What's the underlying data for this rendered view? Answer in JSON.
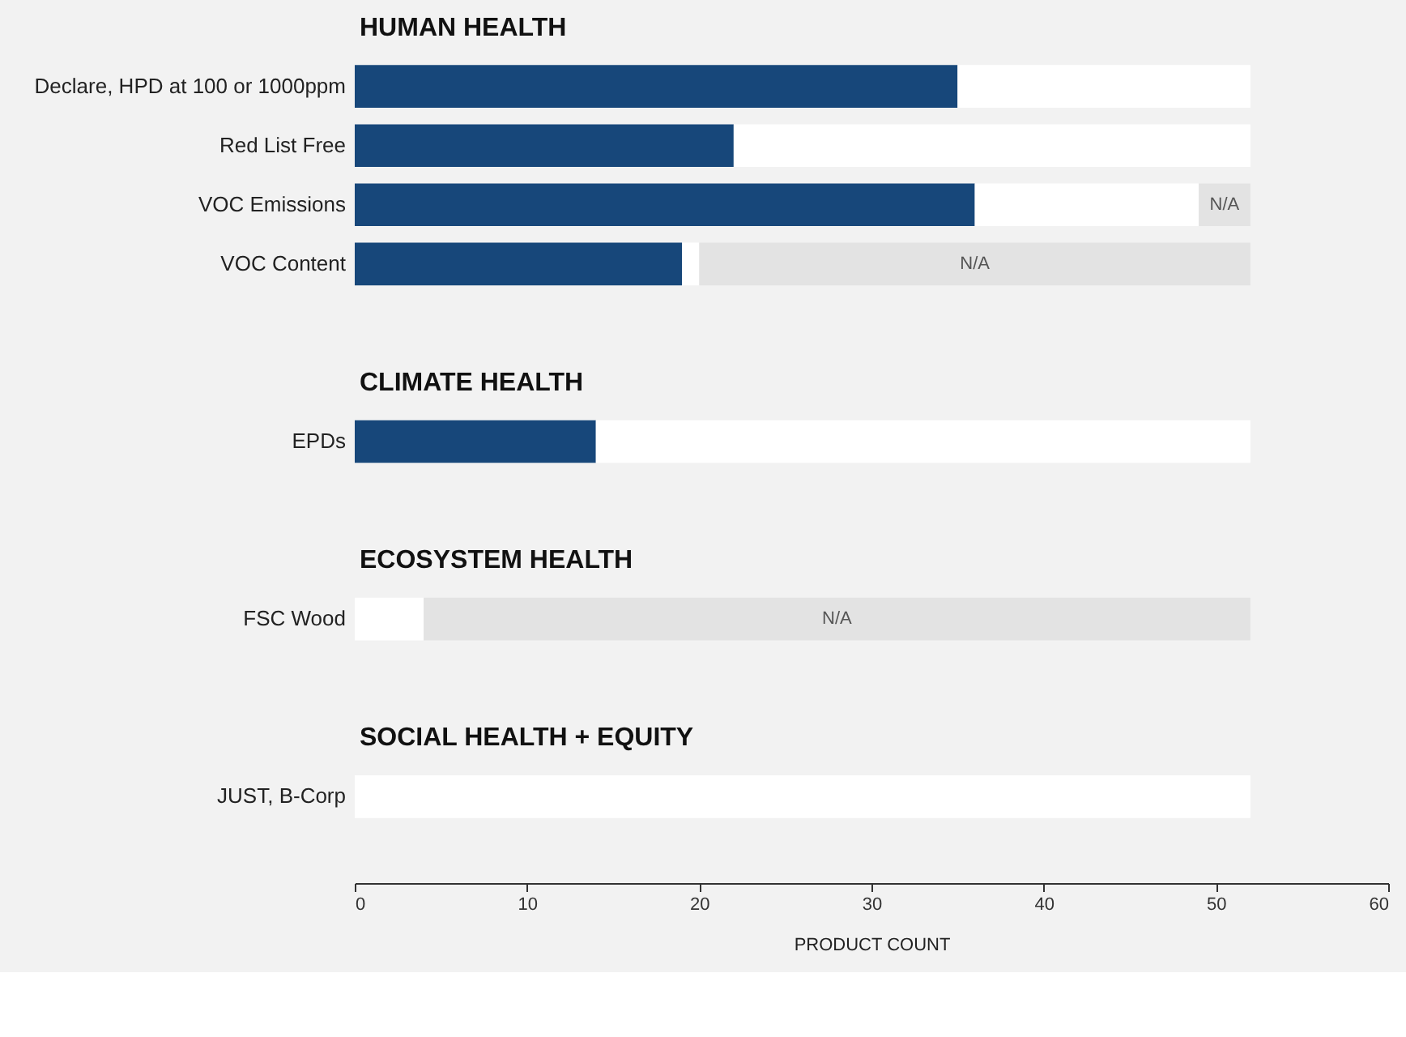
{
  "chart_data": {
    "type": "bar",
    "orientation": "horizontal",
    "stacked": true,
    "xlabel": "PRODUCT COUNT",
    "annotations": [
      "HUMAN HEALTH",
      "CLIMATE HEALTH",
      "ECOSYSTEM HEALTH",
      "SOCIAL HEALTH + EQUITY"
    ],
    "categories": [
      null,
      "Declare, HPD at 100 or 1000ppm",
      "Red List Free",
      "VOC Emissions",
      "VOC Content",
      null,
      null,
      "EPDs",
      null,
      null,
      "FSC Wood",
      null,
      null,
      "JUST, B-Corp",
      null
    ],
    "series": [
      {
        "color": "#17477a",
        "values": [
          null,
          35,
          22,
          36,
          19,
          null,
          null,
          14,
          null,
          null,
          0,
          null,
          null,
          0,
          null
        ]
      },
      {
        "color": "#ffffff",
        "values": [
          null,
          17,
          30,
          13,
          1,
          null,
          null,
          38,
          null,
          null,
          4,
          null,
          null,
          52,
          null
        ]
      },
      {
        "color": "#e3e3e3",
        "values": [
          null,
          0,
          0,
          3,
          32,
          null,
          null,
          0,
          null,
          null,
          48,
          null,
          null,
          0,
          null
        ],
        "value_labels": [
          null,
          null,
          null,
          "N/A",
          "N/A",
          null,
          null,
          null,
          null,
          null,
          "N/A",
          null,
          null,
          null,
          null
        ]
      }
    ],
    "xlim": [
      0,
      60
    ],
    "xticks": [
      0,
      10,
      20,
      30,
      40,
      50,
      60
    ]
  }
}
